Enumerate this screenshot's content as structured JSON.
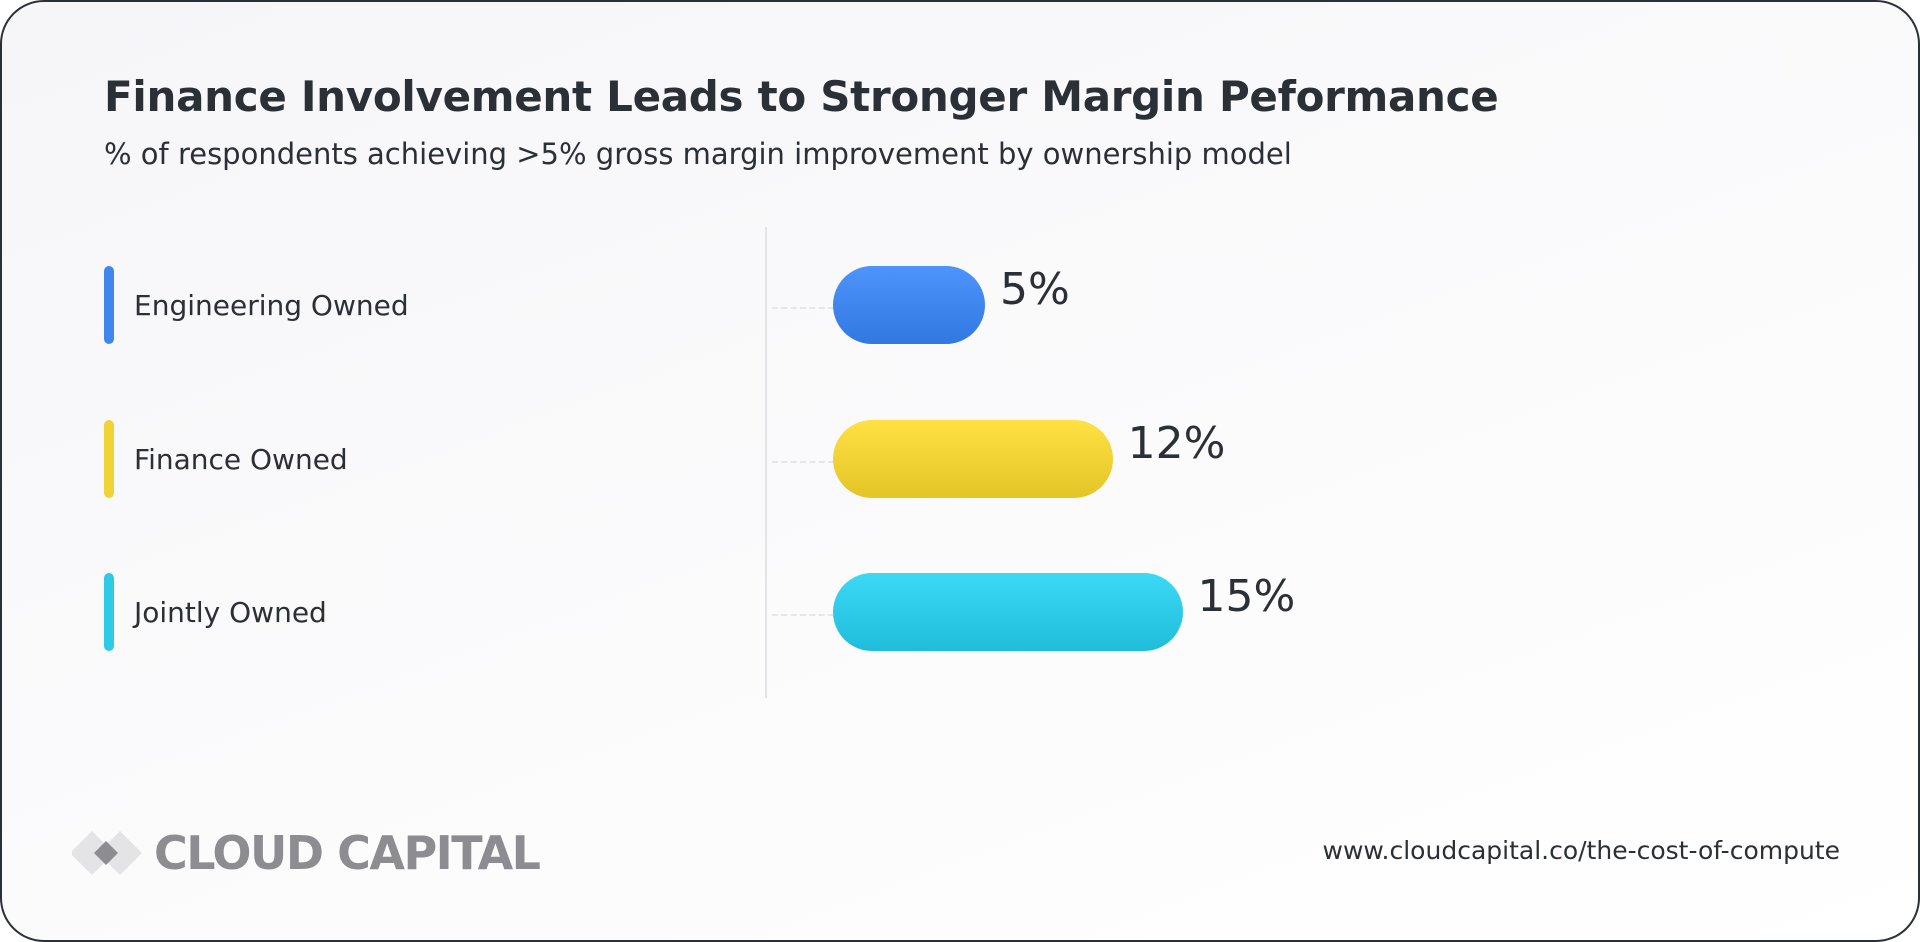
{
  "chart_data": {
    "type": "bar",
    "orientation": "horizontal",
    "title": "Finance Involvement Leads to Stronger Margin Peformance",
    "subtitle": "% of respondents achieving >5% gross margin improvement by ownership model",
    "categories": [
      "Engineering Owned",
      "Finance Owned",
      "Jointly Owned"
    ],
    "values": [
      5,
      12,
      15
    ],
    "value_labels": [
      "5%",
      "12%",
      "15%"
    ],
    "value_unit": "%",
    "colors": [
      "#3f86ee",
      "#f1d335",
      "#2ecbe8"
    ],
    "xlim": [
      0,
      15
    ],
    "xlabel": "",
    "ylabel": "",
    "grid": false
  },
  "footer": {
    "logo_text": "CLOUD CAPITAL",
    "url": "www.cloudcapital.co/the-cost-of-compute"
  },
  "icons": {
    "logo": "diamond-logo-icon"
  }
}
